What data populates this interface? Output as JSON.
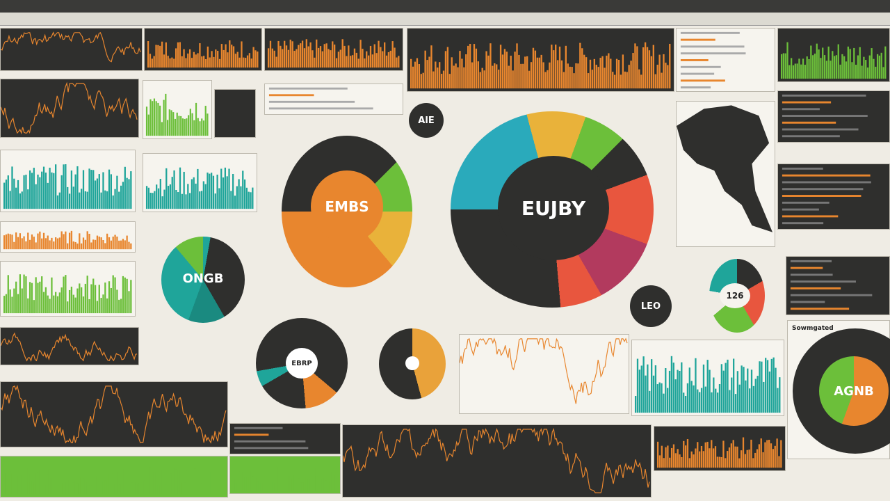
{
  "colors": {
    "dark": "#2f2f2d",
    "orange": "#e8862e",
    "green": "#6cbf3a",
    "teal": "#1fa59a",
    "yellow": "#e9b23a",
    "red": "#e8563e",
    "magenta": "#b23a5e",
    "cyan": "#2aaabb"
  },
  "donuts": {
    "main": {
      "label": "EUJBY"
    },
    "left": {
      "label": "EMBS"
    },
    "teal": {
      "label": "ONGB"
    },
    "small_right": {
      "label": "126"
    },
    "bottom_right": {
      "label": "AGNB",
      "title": "Sowmgated"
    },
    "bottom_mid": {
      "label": "EBRP"
    }
  },
  "badges": {
    "top": "AlE",
    "right": "LEO"
  }
}
